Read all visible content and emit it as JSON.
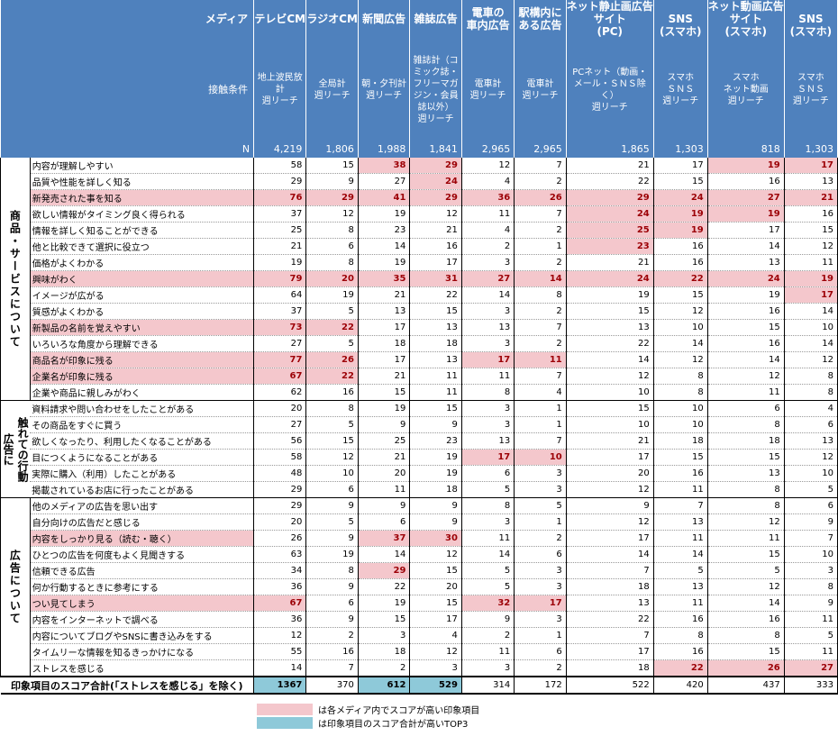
{
  "header": {
    "media_label": "メディア",
    "contact_label": "接触条件",
    "n_label": "N",
    "columns": [
      {
        "title": "テレビCM",
        "cond": "地上波民放計\n週リーチ",
        "n": "4,219"
      },
      {
        "title": "ラジオCM",
        "cond": "全局計\n週リーチ",
        "n": "1,806"
      },
      {
        "title": "新聞広告",
        "cond": "朝・夕刊計\n週リーチ",
        "n": "1,988"
      },
      {
        "title": "雑誌広告",
        "cond": "雑誌計（コミック誌・フリーマガジン・会員誌以外）\n週リーチ",
        "n": "1,841"
      },
      {
        "title": "電車の\n車内広告",
        "cond": "電車計\n週リーチ",
        "n": "2,965"
      },
      {
        "title": "駅構内に\nある広告",
        "cond": "電車計\n週リーチ",
        "n": "2,965"
      },
      {
        "title": "サイト\n(PC)",
        "cond": "PCネット（動画・メール・ＳＮＳ除く）\n週リーチ",
        "n": "1,865"
      },
      {
        "title": "SNS\n(スマホ)",
        "cond": "スマホ\nＳＮＳ\n週リーチ",
        "n": "1,303"
      },
      {
        "title": "サイト\n(スマホ)",
        "cond": "スマホ\nネット動画\n週リーチ",
        "n": "818"
      },
      {
        "title": "SNS\n(スマホ)",
        "cond": "スマホ\nＳＮＳ\n週リーチ",
        "n": "1,303"
      }
    ],
    "group_net_still": "ネット静止画広告",
    "group_net_video": "ネット動画広告"
  },
  "groups": [
    {
      "label": "商品・サービスについて",
      "rows": [
        {
          "item": "内容が理解しやすい",
          "v": [
            "58",
            "15",
            "38",
            "29",
            "12",
            "7",
            "21",
            "17",
            "19",
            "17"
          ],
          "h": [
            2,
            3,
            8,
            9
          ]
        },
        {
          "item": "品質や性能を詳しく知る",
          "v": [
            "29",
            "9",
            "27",
            "24",
            "4",
            "2",
            "22",
            "15",
            "16",
            "13"
          ],
          "h": [
            3
          ]
        },
        {
          "item": "新発売された事を知る",
          "v": [
            "76",
            "29",
            "41",
            "29",
            "36",
            "26",
            "29",
            "24",
            "27",
            "21"
          ],
          "h": [
            0,
            1,
            2,
            3,
            4,
            5,
            6,
            7,
            8,
            9
          ]
        },
        {
          "item": "欲しい情報がタイミング良く得られる",
          "v": [
            "37",
            "12",
            "19",
            "12",
            "11",
            "7",
            "24",
            "19",
            "19",
            "16"
          ],
          "h": [
            6,
            7,
            8
          ]
        },
        {
          "item": "情報を詳しく知ることができる",
          "v": [
            "25",
            "8",
            "23",
            "21",
            "4",
            "2",
            "25",
            "19",
            "17",
            "15"
          ],
          "h": [
            6,
            7
          ]
        },
        {
          "item": "他と比較できて選択に役立つ",
          "v": [
            "21",
            "6",
            "14",
            "16",
            "2",
            "1",
            "23",
            "16",
            "14",
            "12"
          ],
          "h": [
            6
          ]
        },
        {
          "item": "価格がよくわかる",
          "v": [
            "19",
            "8",
            "19",
            "17",
            "3",
            "2",
            "21",
            "16",
            "13",
            "11"
          ],
          "h": []
        },
        {
          "item": "興味がわく",
          "v": [
            "79",
            "20",
            "35",
            "31",
            "27",
            "14",
            "24",
            "22",
            "24",
            "19"
          ],
          "h": [
            0,
            1,
            2,
            3,
            4,
            5,
            6,
            7,
            8,
            9
          ]
        },
        {
          "item": "イメージが広がる",
          "v": [
            "64",
            "19",
            "21",
            "22",
            "14",
            "8",
            "19",
            "15",
            "19",
            "17"
          ],
          "h": [
            9
          ]
        },
        {
          "item": "質感がよくわかる",
          "v": [
            "37",
            "5",
            "13",
            "15",
            "3",
            "2",
            "15",
            "12",
            "16",
            "14"
          ],
          "h": []
        },
        {
          "item": "新製品の名前を覚えやすい",
          "v": [
            "73",
            "22",
            "17",
            "13",
            "13",
            "7",
            "13",
            "10",
            "15",
            "10"
          ],
          "h": [
            0,
            1
          ]
        },
        {
          "item": "いろいろな角度から理解できる",
          "v": [
            "27",
            "5",
            "18",
            "18",
            "3",
            "2",
            "22",
            "14",
            "16",
            "14"
          ],
          "h": []
        },
        {
          "item": "商品名が印象に残る",
          "v": [
            "77",
            "26",
            "17",
            "13",
            "17",
            "11",
            "14",
            "12",
            "14",
            "12"
          ],
          "h": [
            0,
            1,
            4,
            5
          ]
        },
        {
          "item": "企業名が印象に残る",
          "v": [
            "67",
            "22",
            "21",
            "11",
            "11",
            "7",
            "12",
            "8",
            "12",
            "8"
          ],
          "h": [
            0,
            1
          ]
        },
        {
          "item": "企業や商品に親しみがわく",
          "v": [
            "62",
            "16",
            "15",
            "11",
            "8",
            "4",
            "10",
            "8",
            "11",
            "8"
          ],
          "h": []
        }
      ]
    },
    {
      "label": "触れての行動",
      "label2": "広告に",
      "rows": [
        {
          "item": "資料請求や問い合わせをしたことがある",
          "v": [
            "20",
            "8",
            "19",
            "15",
            "3",
            "1",
            "15",
            "10",
            "6",
            "4"
          ],
          "h": []
        },
        {
          "item": "その商品をすぐに買う",
          "v": [
            "27",
            "5",
            "9",
            "9",
            "3",
            "1",
            "10",
            "10",
            "8",
            "6"
          ],
          "h": []
        },
        {
          "item": "欲しくなったり、利用したくなることがある",
          "v": [
            "56",
            "15",
            "25",
            "23",
            "13",
            "7",
            "21",
            "18",
            "18",
            "13"
          ],
          "h": []
        },
        {
          "item": "目につくようになることがある",
          "v": [
            "58",
            "12",
            "21",
            "19",
            "17",
            "10",
            "17",
            "15",
            "15",
            "12"
          ],
          "h": [
            4,
            5
          ]
        },
        {
          "item": "実際に購入（利用）したことがある",
          "v": [
            "48",
            "10",
            "20",
            "19",
            "6",
            "3",
            "20",
            "16",
            "13",
            "10"
          ],
          "h": []
        },
        {
          "item": "掲載されているお店に行ったことがある",
          "v": [
            "29",
            "6",
            "11",
            "18",
            "5",
            "3",
            "12",
            "11",
            "8",
            "5"
          ],
          "h": []
        }
      ]
    },
    {
      "label": "広告について",
      "rows": [
        {
          "item": "他のメディアの広告を思い出す",
          "v": [
            "29",
            "9",
            "9",
            "9",
            "8",
            "5",
            "9",
            "7",
            "8",
            "6"
          ],
          "h": []
        },
        {
          "item": "自分向けの広告だと感じる",
          "v": [
            "20",
            "5",
            "6",
            "9",
            "3",
            "1",
            "12",
            "13",
            "12",
            "9"
          ],
          "h": []
        },
        {
          "item": "内容をしっかり見る（読む・聴く）",
          "v": [
            "26",
            "9",
            "37",
            "30",
            "11",
            "2",
            "17",
            "11",
            "11",
            "7"
          ],
          "h": [
            2,
            3
          ]
        },
        {
          "item": "ひとつの広告を何度もよく見聞きする",
          "v": [
            "63",
            "19",
            "14",
            "12",
            "14",
            "6",
            "14",
            "14",
            "15",
            "10"
          ],
          "h": []
        },
        {
          "item": "信頼できる広告",
          "v": [
            "34",
            "8",
            "29",
            "15",
            "5",
            "3",
            "7",
            "5",
            "5",
            "3"
          ],
          "h": [
            2
          ]
        },
        {
          "item": "何か行動するときに参考にする",
          "v": [
            "36",
            "9",
            "22",
            "20",
            "5",
            "3",
            "18",
            "13",
            "12",
            "8"
          ],
          "h": []
        },
        {
          "item": "つい見てしまう",
          "v": [
            "67",
            "6",
            "19",
            "15",
            "32",
            "17",
            "13",
            "11",
            "14",
            "9"
          ],
          "h": [
            0,
            4,
            5
          ]
        },
        {
          "item": "内容をインターネットで調べる",
          "v": [
            "36",
            "9",
            "15",
            "17",
            "9",
            "3",
            "22",
            "16",
            "16",
            "11"
          ],
          "h": []
        },
        {
          "item": "内容についてブログやSNSに書き込みをする",
          "v": [
            "12",
            "2",
            "3",
            "4",
            "2",
            "1",
            "7",
            "8",
            "8",
            "5"
          ],
          "h": []
        },
        {
          "item": "タイムリーな情報を知るきっかけになる",
          "v": [
            "55",
            "16",
            "18",
            "12",
            "11",
            "6",
            "17",
            "16",
            "15",
            "11"
          ],
          "h": []
        },
        {
          "item": "ストレスを感じる",
          "v": [
            "14",
            "7",
            "2",
            "3",
            "3",
            "2",
            "18",
            "22",
            "26",
            "27"
          ],
          "h": [
            7,
            8,
            9
          ]
        }
      ]
    }
  ],
  "total": {
    "label": "印象項目のスコア合計(「ストレスを感じる」を除く)",
    "v": [
      "1367",
      "370",
      "612",
      "529",
      "314",
      "172",
      "522",
      "420",
      "437",
      "333"
    ],
    "top": [
      0,
      2,
      3
    ]
  },
  "legend": {
    "pink_text": "は各メディア内でスコアが高い印象項目",
    "blue_text": "は印象項目のスコア合計が高いTOP3",
    "pink_color": "#F4C7CC",
    "blue_color": "#8EC9D9"
  },
  "colors": {
    "header_bg": "#4F81BD",
    "highlight_text": "#9C0006"
  }
}
